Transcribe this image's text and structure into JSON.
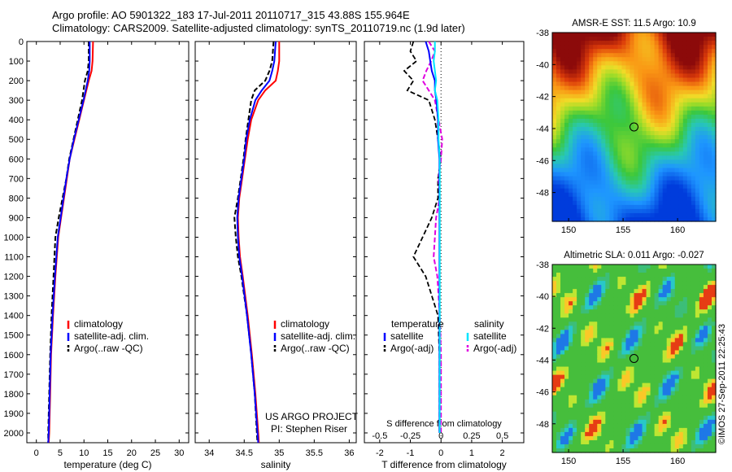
{
  "header": {
    "line1": "Argo profile: AO 5901322_183 17-Jul-2011 20110717_315 43.88S 155.964E",
    "line2": "Climatology: CARS2009. Satellite-adjusted climatology: synTS_20110719.nc (1.9d later)"
  },
  "footer": {
    "imos_stamp": "©IMOS 27-Sep-2011 22:25:43"
  },
  "colors": {
    "climatology": "#ff0000",
    "satellite": "#0000ff",
    "argo": "#000000",
    "satellite_salinity": "#00e5ff",
    "argo_salinity": "#e000e0"
  },
  "chart_data": [
    {
      "type": "line",
      "panel": "temperature",
      "xlabel": "temperature (deg C)",
      "ylabel": "",
      "xlim": [
        -2,
        32
      ],
      "ylim": [
        2050,
        0
      ],
      "xticks": [
        "0",
        "5",
        "10",
        "15",
        "20",
        "25",
        "30"
      ],
      "yticks": [
        "0",
        "100",
        "200",
        "300",
        "400",
        "500",
        "600",
        "700",
        "800",
        "900",
        "1000",
        "1100",
        "1200",
        "1300",
        "1400",
        "1500",
        "1600",
        "1700",
        "1800",
        "1900",
        "2000"
      ],
      "legend": [
        "climatology",
        "satellite-adj. clim.",
        "Argo(..raw -QC)"
      ],
      "depth": [
        0,
        100,
        150,
        200,
        300,
        400,
        500,
        600,
        700,
        800,
        900,
        1000,
        1200,
        1400,
        1600,
        1800,
        2000,
        2050
      ],
      "series": [
        {
          "name": "climatology",
          "values": [
            11.9,
            11.8,
            11.6,
            11.0,
            10.0,
            9.0,
            8.0,
            7.0,
            6.4,
            5.8,
            5.2,
            4.6,
            4.0,
            3.5,
            3.1,
            2.9,
            2.7,
            2.6
          ]
        },
        {
          "name": "satellite-adj. clim.",
          "values": [
            11.2,
            11.2,
            11.1,
            10.8,
            9.9,
            8.9,
            7.9,
            7.0,
            6.3,
            5.7,
            5.1,
            4.5,
            3.9,
            3.4,
            3.0,
            2.8,
            2.6,
            2.5
          ]
        },
        {
          "name": "Argo(..raw -QC)",
          "values": [
            11.0,
            11.0,
            10.8,
            10.2,
            9.6,
            8.7,
            7.8,
            6.9,
            6.3,
            5.5,
            4.7,
            4.0,
            3.6,
            3.2,
            2.9,
            2.7,
            2.5,
            2.5
          ]
        }
      ]
    },
    {
      "type": "line",
      "panel": "salinity",
      "xlabel": "salinity",
      "xlim": [
        33.8,
        36.1
      ],
      "ylim": [
        2050,
        0
      ],
      "xticks": [
        "34",
        "34.5",
        "35",
        "35.5",
        "36"
      ],
      "legend": [
        "climatology",
        "satellite-adj. clim.",
        "Argo(..raw -QC)"
      ],
      "annotation": [
        "US ARGO PROJECT",
        "PI: Stephen Riser"
      ],
      "depth": [
        0,
        100,
        150,
        200,
        250,
        300,
        400,
        500,
        600,
        700,
        800,
        900,
        1000,
        1100,
        1200,
        1400,
        1600,
        1800,
        2000,
        2050
      ],
      "series": [
        {
          "name": "climatology",
          "values": [
            35.0,
            35.0,
            34.98,
            34.95,
            34.8,
            34.7,
            34.6,
            34.55,
            34.51,
            34.47,
            34.43,
            34.41,
            34.42,
            34.44,
            34.48,
            34.55,
            34.61,
            34.66,
            34.7,
            34.71
          ]
        },
        {
          "name": "satellite-adj. clim.",
          "values": [
            34.95,
            34.93,
            34.9,
            34.86,
            34.75,
            34.66,
            34.58,
            34.53,
            34.5,
            34.46,
            34.42,
            34.4,
            34.41,
            34.43,
            34.47,
            34.54,
            34.6,
            34.65,
            34.69,
            34.7
          ]
        },
        {
          "name": "Argo(..raw -QC)",
          "values": [
            34.92,
            34.9,
            34.86,
            34.8,
            34.65,
            34.6,
            34.56,
            34.52,
            34.49,
            34.45,
            34.41,
            34.36,
            34.38,
            34.41,
            34.46,
            34.54,
            34.6,
            34.65,
            34.68,
            34.69
          ]
        }
      ]
    },
    {
      "type": "line",
      "panel": "difference",
      "xlabel": "T difference from climatology",
      "x2label": "S difference from climatology",
      "xlim": [
        -2.5,
        2.7
      ],
      "ylim": [
        2050,
        0
      ],
      "xticks": [
        "-2",
        "-1",
        "0",
        "1",
        "2"
      ],
      "x2ticks": [
        "-0.5",
        "-0.25",
        "0",
        "0.25",
        "0.5"
      ],
      "legend_headers": [
        "temperature",
        "salinity"
      ],
      "legend": [
        "satellite",
        "Argo(-adj)",
        "satellite",
        "Argo(-adj)"
      ],
      "depth": [
        0,
        50,
        100,
        150,
        200,
        250,
        300,
        400,
        500,
        600,
        700,
        800,
        900,
        1000,
        1100,
        1200,
        1400,
        1600,
        1800,
        2000
      ],
      "series": [
        {
          "name": "satellite",
          "values": [
            -0.5,
            -0.4,
            -0.35,
            -0.3,
            -0.2,
            -0.2,
            -0.15,
            -0.1,
            -0.1,
            -0.05,
            -0.05,
            -0.05,
            -0.05,
            -0.05,
            -0.05,
            -0.05,
            -0.05,
            -0.05,
            -0.05,
            -0.05
          ]
        },
        {
          "name": "Argo(-adj)",
          "values": [
            -0.9,
            -1.0,
            -0.8,
            -1.2,
            -0.9,
            -1.1,
            -0.4,
            -0.2,
            -0.1,
            0.0,
            -0.1,
            -0.1,
            -0.3,
            -0.6,
            -0.9,
            -0.5,
            -0.1,
            -0.05,
            -0.05,
            -0.05
          ]
        },
        {
          "name": "satellite",
          "values": [
            -0.05,
            -0.05,
            -0.06,
            -0.05,
            -0.04,
            -0.05,
            -0.03,
            -0.02,
            -0.02,
            -0.01,
            -0.01,
            -0.01,
            -0.01,
            -0.01,
            -0.01,
            -0.01,
            -0.01,
            -0.01,
            -0.01,
            -0.01
          ]
        },
        {
          "name": "Argo(-adj)",
          "values": [
            -0.1,
            -0.05,
            -0.08,
            -0.12,
            -0.15,
            -0.1,
            -0.05,
            -0.02,
            0.01,
            0.0,
            -0.02,
            -0.01,
            -0.04,
            -0.05,
            -0.06,
            -0.03,
            -0.01,
            0.0,
            0.0,
            0.0
          ]
        }
      ]
    },
    {
      "type": "heatmap",
      "panel": "sst_map",
      "title": "AMSR-E SST: 11.5 Argo: 10.9",
      "xlim": [
        148.5,
        163.5
      ],
      "ylim": [
        -49.8,
        -38
      ],
      "xticks": [
        "150",
        "155",
        "160"
      ],
      "yticks": [
        "-38",
        "-40",
        "-42",
        "-44",
        "-46",
        "-48"
      ],
      "marker": {
        "lon": 156.0,
        "lat": -43.9
      }
    },
    {
      "type": "heatmap",
      "panel": "sla_map",
      "title": "Altimetric SLA: 0.011 Argo: -0.027",
      "xlim": [
        148.5,
        163.5
      ],
      "ylim": [
        -49.8,
        -38
      ],
      "xticks": [
        "150",
        "155",
        "160"
      ],
      "yticks": [
        "-38",
        "-40",
        "-42",
        "-44",
        "-46",
        "-48"
      ],
      "marker": {
        "lon": 156.0,
        "lat": -43.9
      }
    }
  ]
}
